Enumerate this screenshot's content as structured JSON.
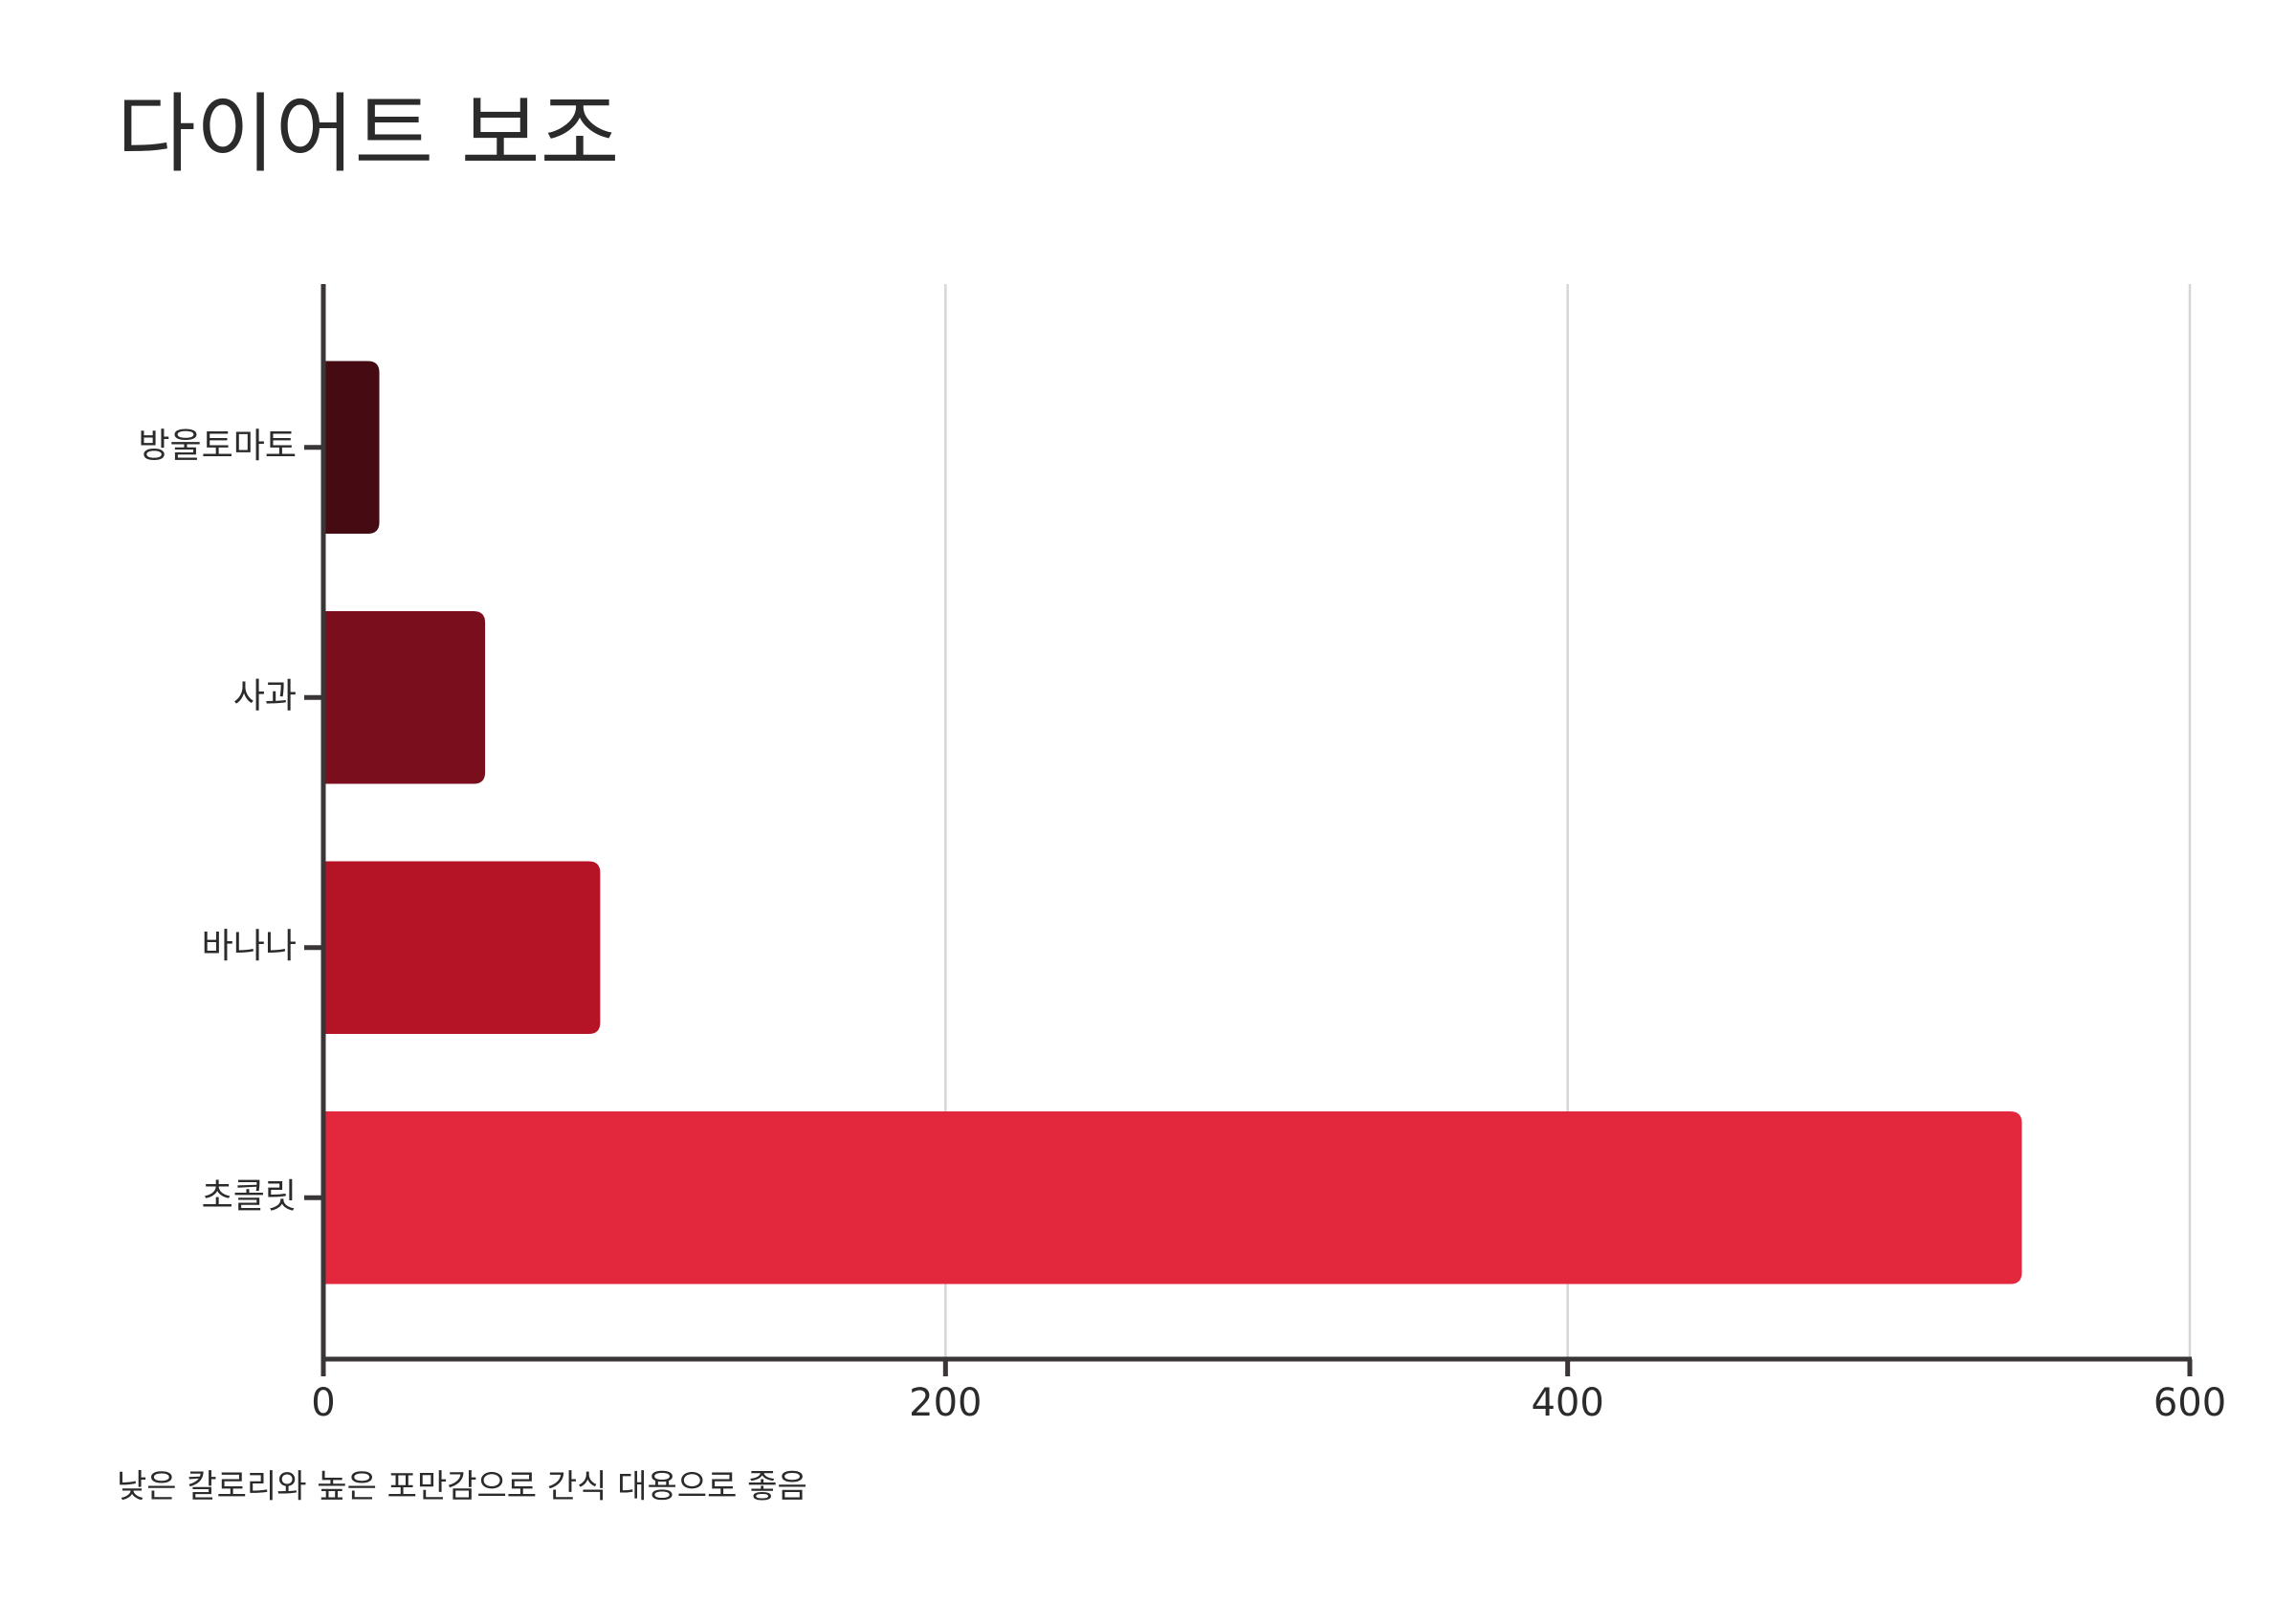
{
  "chart_data": {
    "type": "bar",
    "orientation": "horizontal",
    "title": "다이어트 보조",
    "categories": [
      "방울토마토",
      "사과",
      "바나나",
      "초콜릿"
    ],
    "values": [
      18,
      52,
      89,
      546
    ],
    "colors": [
      "#450a12",
      "#7b0e1c",
      "#b51426",
      "#e3283d"
    ],
    "xlim": [
      0,
      600
    ],
    "xticks": [
      0,
      200,
      400,
      600
    ],
    "grid": true,
    "note": "낮은 칼로리와 높은 포만감으로 간식 대용으로 좋음"
  }
}
